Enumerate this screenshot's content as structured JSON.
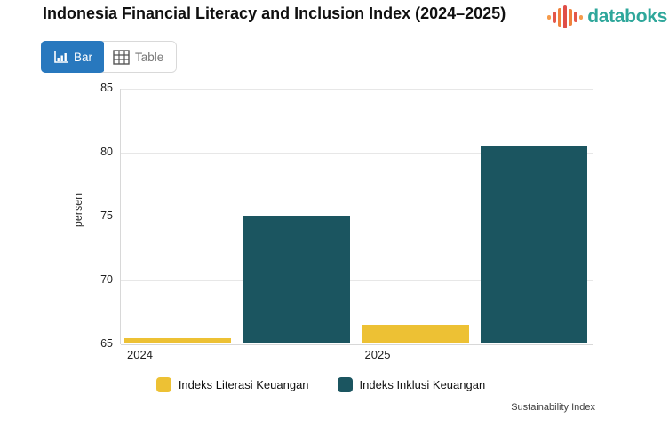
{
  "page": {
    "title": "Indonesia Financial Literacy and Inclusion Index (2024–2025)"
  },
  "brand": {
    "name": "databoks",
    "text_color": "#2FA79B",
    "icon_bar_colors": [
      "#F59B4B",
      "#E4574A",
      "#F0823C",
      "#E04E48",
      "#F0823C",
      "#E4574A",
      "#F59B4B"
    ],
    "icon_bar_heights": [
      5,
      13,
      21,
      26,
      19,
      12,
      5
    ]
  },
  "toolbar": {
    "bar_label": "Bar",
    "table_label": "Table",
    "active": "Bar",
    "active_color": "#2878BE"
  },
  "chart_data": {
    "type": "bar",
    "title": "Indonesia Financial Literacy and Inclusion Index (2024–2025)",
    "categories": [
      "2024",
      "2025"
    ],
    "series": [
      {
        "name": "Indeks Literasi Keuangan",
        "color": "#EDC134",
        "values": [
          65.43,
          66.46
        ]
      },
      {
        "name": "Indeks Inklusi Keuangan",
        "color": "#1B5560",
        "values": [
          75.02,
          80.51
        ]
      }
    ],
    "xlabel": "",
    "ylabel": "persen",
    "ylim": [
      65,
      85
    ],
    "yticks": [
      65,
      70,
      75,
      80,
      85
    ],
    "grid": true,
    "legend_position": "bottom"
  },
  "footer": {
    "source_label": "Sustainability Index"
  }
}
